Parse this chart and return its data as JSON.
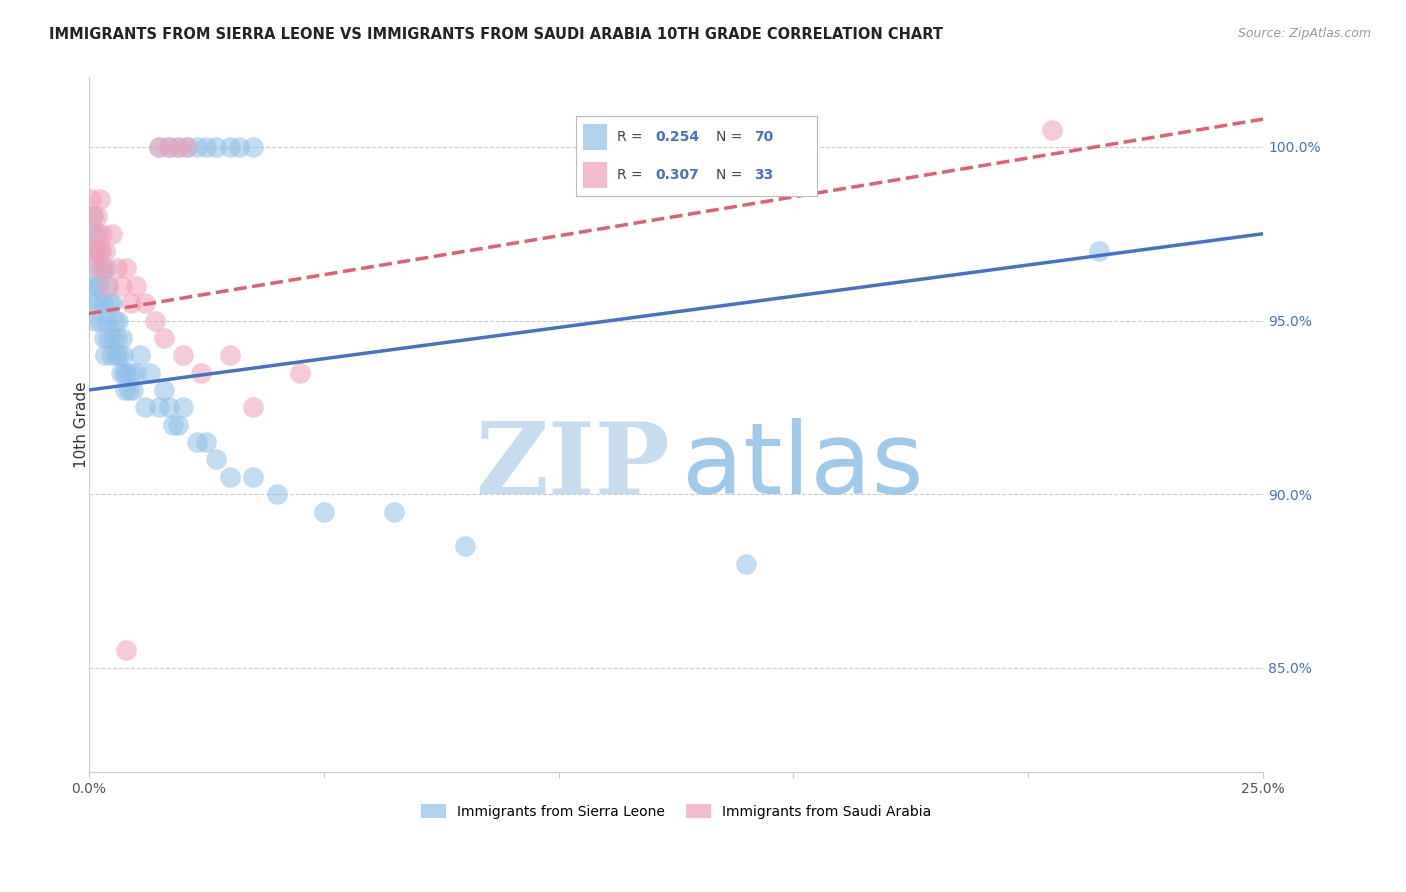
{
  "title": "IMMIGRANTS FROM SIERRA LEONE VS IMMIGRANTS FROM SAUDI ARABIA 10TH GRADE CORRELATION CHART",
  "source": "Source: ZipAtlas.com",
  "ylabel": "10th Grade",
  "legend_R1": "0.254",
  "legend_N1": "70",
  "legend_R2": "0.307",
  "legend_N2": "33",
  "legend_label1": "Immigrants from Sierra Leone",
  "legend_label2": "Immigrants from Saudi Arabia",
  "color_blue": "#90C0E8",
  "color_pink": "#F0A0B8",
  "color_blue_line": "#4472C4",
  "color_pink_line": "#E06070",
  "watermark_zip": "#C8DCF0",
  "watermark_atlas": "#A0C8E8",
  "xmin": 0.0,
  "xmax": 25.0,
  "ymin": 82.0,
  "ymax": 102.0,
  "yticks": [
    85.0,
    90.0,
    95.0,
    100.0
  ],
  "ytick_labels": [
    "85.0%",
    "90.0%",
    "95.0%",
    "100.0%"
  ],
  "blue_line_x0": 0.0,
  "blue_line_y0": 93.0,
  "blue_line_x1": 25.0,
  "blue_line_y1": 97.5,
  "pink_line_x0": 0.0,
  "pink_line_y0": 95.2,
  "pink_line_x1": 25.0,
  "pink_line_y1": 100.8,
  "sl_x": [
    0.05,
    0.07,
    0.08,
    0.1,
    0.12,
    0.13,
    0.15,
    0.17,
    0.18,
    0.2,
    0.22,
    0.25,
    0.27,
    0.28,
    0.3,
    0.32,
    0.35,
    0.37,
    0.38,
    0.4,
    0.42,
    0.45,
    0.47,
    0.5,
    0.52,
    0.55,
    0.58,
    0.6,
    0.62,
    0.65,
    0.68,
    0.7,
    0.72,
    0.75,
    0.78,
    0.8,
    0.85,
    0.9,
    0.95,
    1.0,
    1.1,
    1.2,
    1.3,
    1.5,
    1.6,
    1.7,
    1.8,
    1.9,
    2.0,
    2.3,
    2.5,
    2.7,
    3.0,
    3.5,
    4.0,
    5.0,
    6.5,
    8.0,
    1.5,
    1.7,
    1.9,
    2.1,
    2.3,
    2.5,
    2.7,
    3.0,
    3.2,
    3.5,
    21.5,
    14.0
  ],
  "sl_y": [
    96.0,
    97.5,
    95.5,
    98.0,
    96.5,
    95.0,
    97.0,
    96.0,
    95.5,
    97.5,
    96.0,
    95.0,
    97.0,
    96.5,
    95.5,
    94.5,
    94.0,
    96.5,
    95.0,
    94.5,
    96.0,
    95.5,
    94.0,
    95.5,
    94.5,
    95.0,
    94.0,
    94.5,
    95.0,
    94.0,
    93.5,
    94.5,
    94.0,
    93.5,
    93.0,
    93.5,
    93.0,
    93.5,
    93.0,
    93.5,
    94.0,
    92.5,
    93.5,
    92.5,
    93.0,
    92.5,
    92.0,
    92.0,
    92.5,
    91.5,
    91.5,
    91.0,
    90.5,
    90.5,
    90.0,
    89.5,
    89.5,
    88.5,
    100.0,
    100.0,
    100.0,
    100.0,
    100.0,
    100.0,
    100.0,
    100.0,
    100.0,
    100.0,
    97.0,
    88.0
  ],
  "sa_x": [
    0.05,
    0.08,
    0.1,
    0.13,
    0.15,
    0.18,
    0.2,
    0.23,
    0.25,
    0.28,
    0.3,
    0.35,
    0.4,
    0.5,
    0.6,
    0.7,
    0.8,
    0.9,
    1.0,
    1.2,
    1.4,
    1.6,
    2.0,
    2.4,
    3.0,
    3.5,
    4.5,
    1.5,
    1.7,
    1.9,
    2.1,
    20.5,
    0.8
  ],
  "sa_y": [
    98.5,
    97.0,
    98.0,
    97.5,
    97.0,
    98.0,
    96.5,
    98.5,
    97.0,
    97.5,
    96.5,
    97.0,
    96.0,
    97.5,
    96.5,
    96.0,
    96.5,
    95.5,
    96.0,
    95.5,
    95.0,
    94.5,
    94.0,
    93.5,
    94.0,
    92.5,
    93.5,
    100.0,
    100.0,
    100.0,
    100.0,
    100.5,
    85.5
  ]
}
